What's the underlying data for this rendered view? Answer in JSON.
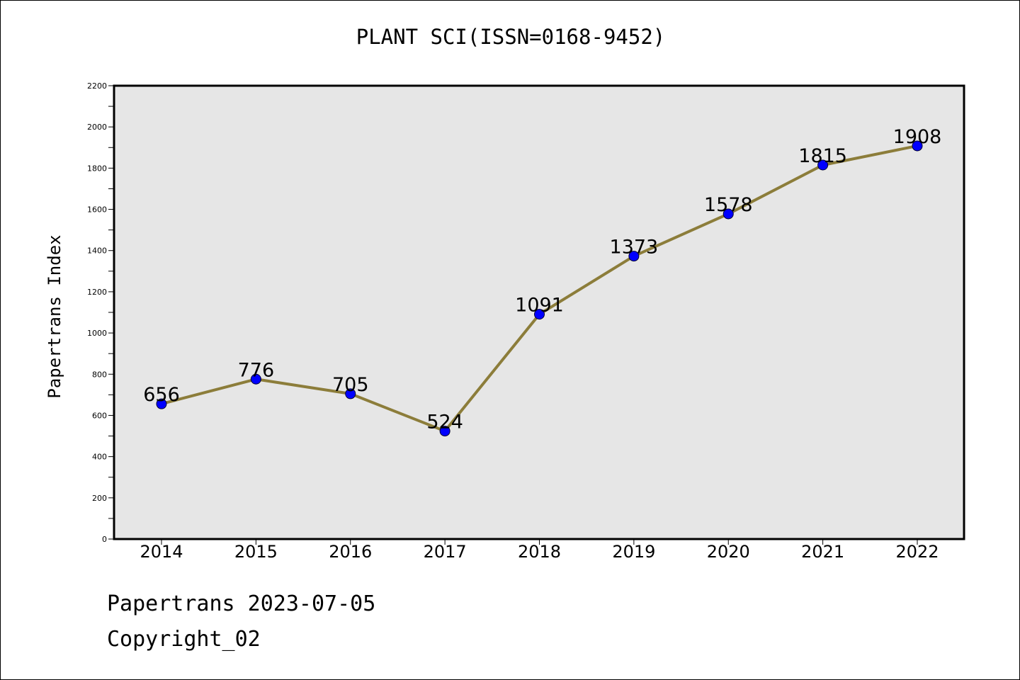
{
  "chart_data": {
    "type": "line",
    "title": "PLANT SCI(ISSN=0168-9452)",
    "xlabel": "",
    "ylabel": "Papertrans Index",
    "categories": [
      "2014",
      "2015",
      "2016",
      "2017",
      "2018",
      "2019",
      "2020",
      "2021",
      "2022"
    ],
    "series": [
      {
        "values": [
          656,
          776,
          705,
          524,
          1091,
          1373,
          1578,
          1815,
          1908
        ]
      }
    ],
    "data_labels": [
      "656",
      "776",
      "705",
      "524",
      "1091",
      "1373",
      "1578",
      "1815",
      "1908"
    ],
    "ylim": [
      0,
      2200
    ],
    "yticks": [
      0,
      200,
      400,
      600,
      800,
      1000,
      1200,
      1400,
      1600,
      1800,
      2000,
      2200
    ],
    "grid": false,
    "line_color": "#8c7d3a",
    "marker_color": "#0000ff",
    "plot_background": "#e6e6e6"
  },
  "footer": {
    "date_text": "Papertrans 2023-07-05",
    "copyright_text": "Copyright_02"
  }
}
